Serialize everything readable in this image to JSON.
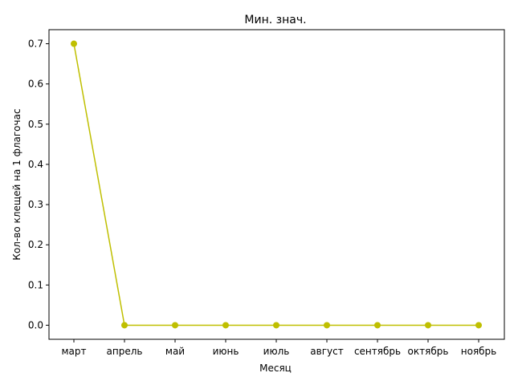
{
  "chart_data": {
    "type": "line",
    "title": "Мин. знач.",
    "xlabel": "Месяц",
    "ylabel": "Кол-во клещей на 1 флагочас",
    "categories": [
      "март",
      "апрель",
      "май",
      "июнь",
      "июль",
      "август",
      "сентябрь",
      "октябрь",
      "ноябрь"
    ],
    "series": [
      {
        "values": [
          0.7,
          0.0,
          0.0,
          0.0,
          0.0,
          0.0,
          0.0,
          0.0,
          0.0
        ],
        "color": "#bfbf00",
        "marker": "circle"
      }
    ],
    "ylim": [
      -0.035,
      0.735
    ],
    "yticks": [
      0.0,
      0.1,
      0.2,
      0.3,
      0.4,
      0.5,
      0.6,
      0.7
    ],
    "ytick_labels": [
      "0.0",
      "0.1",
      "0.2",
      "0.3",
      "0.4",
      "0.5",
      "0.6",
      "0.7"
    ],
    "grid": false,
    "legend": "none"
  }
}
